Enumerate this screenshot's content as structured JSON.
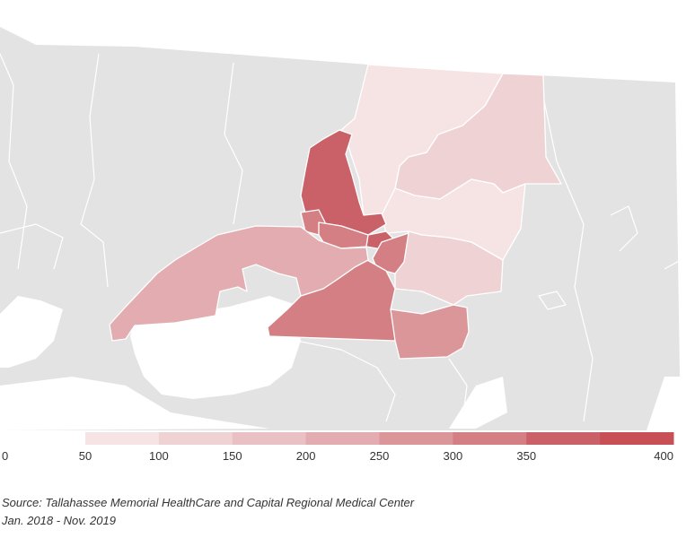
{
  "map": {
    "base_color": "#e3e3e3",
    "border_color": "#ffffff",
    "regions": [
      {
        "name": "north-east-large",
        "value": 125
      },
      {
        "name": "north-central",
        "value": 70
      },
      {
        "name": "east-middle",
        "value": 75
      },
      {
        "name": "east-lower",
        "value": 140
      },
      {
        "name": "north-center-dark",
        "value": 370
      },
      {
        "name": "central-small-a",
        "value": 330
      },
      {
        "name": "central-small-b",
        "value": 345
      },
      {
        "name": "central-small-c",
        "value": 350
      },
      {
        "name": "central-right",
        "value": 310
      },
      {
        "name": "central-south",
        "value": 300
      },
      {
        "name": "west-arm",
        "value": 220
      },
      {
        "name": "south-block",
        "value": 290
      }
    ]
  },
  "legend": {
    "start_label": "0",
    "bins": [
      {
        "label": "50",
        "color": "#f6e4e5"
      },
      {
        "label": "100",
        "color": "#efd2d4"
      },
      {
        "label": "150",
        "color": "#e9c0c3"
      },
      {
        "label": "200",
        "color": "#e2acb0"
      },
      {
        "label": "250",
        "color": "#db9699"
      },
      {
        "label": "300",
        "color": "#d47f83"
      },
      {
        "label": "350",
        "color": "#cb6168"
      },
      {
        "label": "400",
        "color": "#c94f56"
      }
    ],
    "end_label": "400"
  },
  "source": {
    "line1": "Source: Tallahassee Memorial HealthCare and Capital Regional Medical Center",
    "line2": "Jan. 2018 - Nov. 2019"
  }
}
